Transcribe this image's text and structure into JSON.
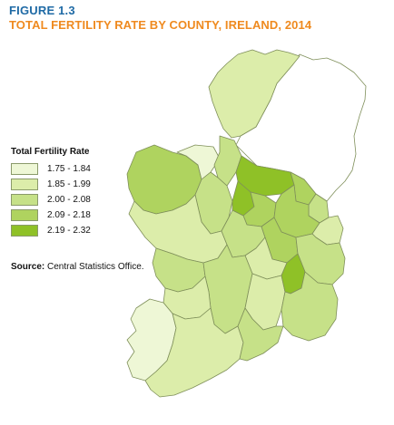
{
  "figure": {
    "label": "FIGURE 1.3",
    "title": "TOTAL FERTILITY RATE BY COUNTY, IRELAND, 2014"
  },
  "legend": {
    "title": "Total Fertility Rate",
    "items": [
      {
        "label": "1.75 - 1.84",
        "color": "#eef7d6"
      },
      {
        "label": "1.85 - 1.99",
        "color": "#dcedaa"
      },
      {
        "label": "2.00 - 2.08",
        "color": "#c6e188"
      },
      {
        "label": "2.09 - 2.18",
        "color": "#afd35f"
      },
      {
        "label": "2.19 - 2.32",
        "color": "#8fc127"
      }
    ]
  },
  "source": {
    "prefix": "Source:",
    "text": "Central Statistics Office."
  },
  "colors": {
    "border": "#7f8f5a",
    "northern_ireland": "#ffffff"
  }
}
